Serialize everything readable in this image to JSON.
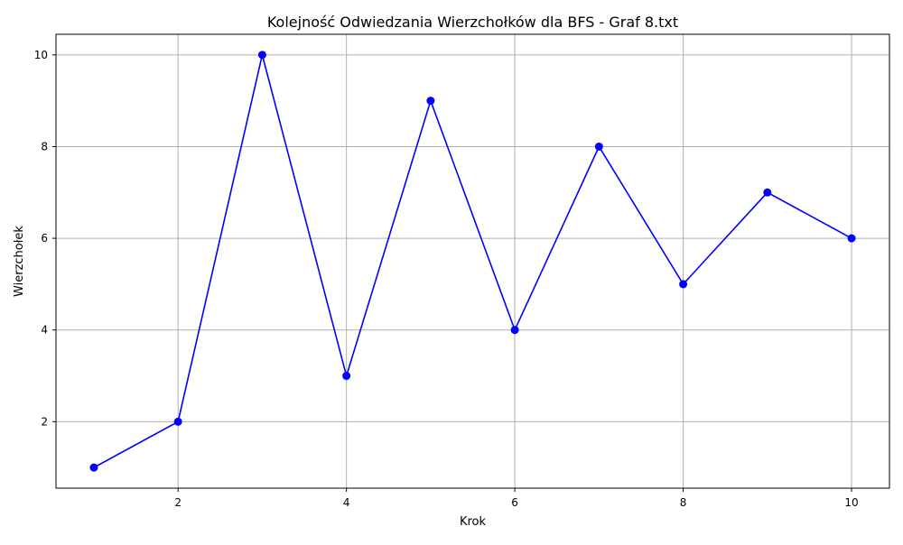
{
  "chart_data": {
    "type": "line",
    "title": "Kolejność Odwiedzania Wierzchołków dla BFS - Graf 8.txt",
    "xlabel": "Krok",
    "ylabel": "Wierzchołek",
    "x": [
      1,
      2,
      3,
      4,
      5,
      6,
      7,
      8,
      9,
      10
    ],
    "series": [
      {
        "values": [
          1,
          2,
          10,
          3,
          9,
          4,
          8,
          5,
          7,
          6
        ],
        "color": "#0000ff",
        "marker": "circle"
      }
    ],
    "xlim": [
      0.55,
      10.45
    ],
    "ylim": [
      0.55,
      10.45
    ],
    "xticks": [
      2,
      4,
      6,
      8,
      10
    ],
    "yticks": [
      2,
      4,
      6,
      8,
      10
    ],
    "grid": true
  }
}
